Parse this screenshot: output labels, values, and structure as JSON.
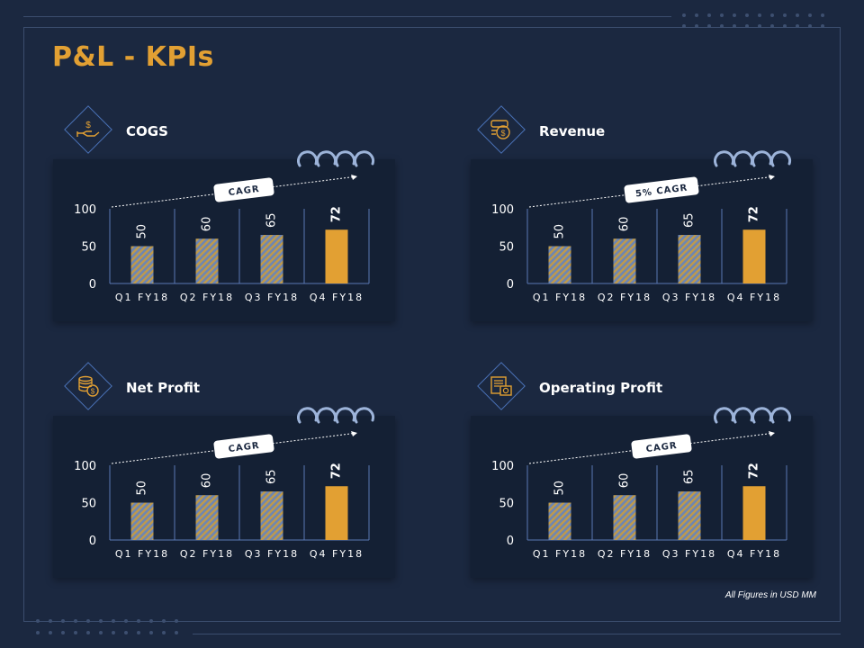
{
  "page": {
    "title": "P&L - KPIs",
    "footnote": "All Figures in USD MM"
  },
  "colors": {
    "background": "#1b2840",
    "card": "#142034",
    "accent_gold": "#e2a033",
    "hatch_blue": "#6d86b3",
    "hatch_gold": "#c09a4a",
    "axis": "#5a78b5",
    "coil": "#9cb3d9"
  },
  "panels": [
    {
      "id": "cogs",
      "title": "COGS",
      "icon": "hand-dollar-icon",
      "cagr_label": "CAGR"
    },
    {
      "id": "revenue",
      "title": "Revenue",
      "icon": "money-bag-icon",
      "cagr_label": "5% CAGR"
    },
    {
      "id": "net-profit",
      "title": "Net Profit",
      "icon": "coin-stack-icon",
      "cagr_label": "CAGR"
    },
    {
      "id": "operating-profit",
      "title": "Operating Profit",
      "icon": "cash-register-icon",
      "cagr_label": "CAGR"
    }
  ],
  "chart_data": [
    {
      "type": "bar",
      "title": "COGS",
      "categories": [
        "Q1 FY18",
        "Q2 FY18",
        "Q3 FY18",
        "Q4 FY18"
      ],
      "values": [
        50,
        60,
        65,
        72
      ],
      "ylim": [
        0,
        100
      ],
      "yticks": [
        0,
        50,
        100
      ],
      "highlight_index": 3,
      "grid": false
    },
    {
      "type": "bar",
      "title": "Revenue",
      "categories": [
        "Q1 FY18",
        "Q2 FY18",
        "Q3 FY18",
        "Q4 FY18"
      ],
      "values": [
        50,
        60,
        65,
        72
      ],
      "ylim": [
        0,
        100
      ],
      "yticks": [
        0,
        50,
        100
      ],
      "highlight_index": 3,
      "grid": false
    },
    {
      "type": "bar",
      "title": "Net Profit",
      "categories": [
        "Q1 FY18",
        "Q2 FY18",
        "Q3 FY18",
        "Q4 FY18"
      ],
      "values": [
        50,
        60,
        65,
        72
      ],
      "ylim": [
        0,
        100
      ],
      "yticks": [
        0,
        50,
        100
      ],
      "highlight_index": 3,
      "grid": false
    },
    {
      "type": "bar",
      "title": "Operating Profit",
      "categories": [
        "Q1 FY18",
        "Q2 FY18",
        "Q3 FY18",
        "Q4 FY18"
      ],
      "values": [
        50,
        60,
        65,
        72
      ],
      "ylim": [
        0,
        100
      ],
      "yticks": [
        0,
        50,
        100
      ],
      "highlight_index": 3,
      "grid": false
    }
  ]
}
